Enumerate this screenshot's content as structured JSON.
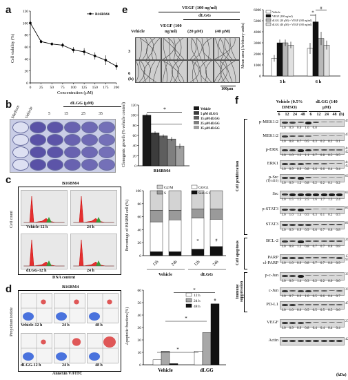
{
  "panels": {
    "a": "a",
    "b": "b",
    "c": "c",
    "d": "d",
    "e": "e",
    "f": "f"
  },
  "panel_a": {
    "legend": "B16BM4",
    "ylabel": "Cell viability (%)",
    "xlabel": "Concentration (μM)",
    "yticks": [
      "0",
      "20",
      "40",
      "60",
      "80",
      "100",
      "120"
    ],
    "xticks": [
      "0",
      "25",
      "50",
      "75",
      "100",
      "125",
      "150",
      "175",
      "200"
    ]
  },
  "panel_b": {
    "drug_header": "dLGG (μM)",
    "col_labels": [
      "Medium",
      "Vehicle",
      "5",
      "15",
      "25",
      "35"
    ],
    "chart_ylabel": "Clonogenic growth (% vehicle control)",
    "chart_xlabel": "B16BM4",
    "legend": [
      "Vehicle",
      "5 μM dLGG",
      "15 μM dLGG",
      "25 μM dLGG",
      "35 μM dLGG"
    ],
    "yticks": [
      "0",
      "20",
      "40",
      "60",
      "80",
      "100",
      "120"
    ],
    "sig": "*"
  },
  "panel_c": {
    "title": "B16BM4",
    "ylabel": "Cell count",
    "xlabel": "DNA content",
    "plot_labels": [
      "Vehicle-12 h",
      "24 h",
      "dLGG-12 h",
      "24 h"
    ],
    "legend": [
      "G2/M",
      "G0/G1",
      "S",
      "Sub-G1"
    ],
    "chart_ylabel": "Percentage of B16BM cell (%)",
    "xticks": [
      "12h",
      "24h",
      "12h",
      "24h"
    ],
    "groups": [
      "Vehicle",
      "dLGG"
    ],
    "yticks": [
      "0",
      "20",
      "40",
      "60",
      "80",
      "100"
    ],
    "sig": [
      "*",
      "#"
    ]
  },
  "panel_d": {
    "title": "B16BM4",
    "ylabel": "Propidium iodide",
    "xlabel": "Annexin V/FITC",
    "plot_labels": [
      "Vehicle-12 h",
      "24 h",
      "48 h",
      "dLGG-12 h",
      "24 h",
      "48 h"
    ],
    "chart_ylabel": "Apoptotic fraction (%)",
    "legend": [
      "12 h",
      "24 h",
      "48 h"
    ],
    "groups": [
      "Vehicle",
      "dLGG"
    ],
    "yticks": [
      "0",
      "10",
      "20",
      "30",
      "40",
      "50",
      "60"
    ],
    "sig": [
      "*",
      "*",
      "*",
      "#"
    ]
  },
  "panel_e": {
    "treat_header": "VEGF (100 ng/ml)",
    "drug_header": "dLGG",
    "col_labels": [
      "Vehicle",
      "VEGF (100 ng/ml)",
      "(20 μM)",
      "(40 μM)"
    ],
    "row_labels": [
      "3",
      "6"
    ],
    "row_unit": "(h)",
    "scale": "100μm",
    "chart_ylabel": "Mean area (Arbitrary units)",
    "legend": [
      "Vehicle",
      "VEGF (100 ng/ml)",
      "dLGG (20 μM) + VEGF (100 ng/ml)",
      "dLGG (40 μM) + VEGF (100 ng/ml)"
    ],
    "yticks": [
      "0",
      "1000",
      "2000",
      "3000",
      "4000",
      "5000",
      "6000"
    ],
    "xticks": [
      "3 h",
      "6 h"
    ],
    "sig": [
      "*",
      "#"
    ]
  },
  "panel_f": {
    "vehicle_header": "Vehicle (0.5% DMSO)",
    "drug_header": "dLGG (140 μM)",
    "times": [
      "6",
      "12",
      "24",
      "48",
      "6",
      "12",
      "24",
      "48"
    ],
    "time_unit": "(h)",
    "kda": "(kDa)",
    "groups": [
      {
        "name": "Cell proliferation"
      },
      {
        "name": "Cell apoptosis"
      },
      {
        "name": "Immune suppression"
      }
    ],
    "rows": [
      {
        "label": "p-MEK1/2",
        "vals": [
          "1.0",
          "0.9",
          "0.6",
          "1.6",
          "0.8",
          "",
          "",
          ""
        ],
        "kda": "45"
      },
      {
        "label": "MEK1/2",
        "vals": [
          "1.0",
          "0.8",
          "0.7",
          "0.5",
          "0.3",
          "0.2",
          "0.2",
          "0.1"
        ],
        "kda": "45"
      },
      {
        "label": "p-ERK",
        "vals": [
          "1.0",
          "1.0",
          "1.2",
          "1.1",
          "0.7",
          "0.8",
          "0.5",
          "0.5"
        ],
        "kda": "44 42"
      },
      {
        "label": "ERK1",
        "vals": [
          "1.0",
          "0.9",
          "0.9",
          "0.8",
          "0.6",
          "0.6",
          "0.4",
          "0.4"
        ],
        "kda": "44 42"
      },
      {
        "label": "p-Src",
        "sub": "(Tyr416)",
        "vals": [
          "1.0",
          "0.9",
          "1.2",
          "0.8",
          "0.2",
          "0.2",
          "0.1",
          "0.2"
        ],
        "kda": "60"
      },
      {
        "label": "Src",
        "vals": [
          "1.0",
          "1.5",
          "1.5",
          "2.5",
          "1.6",
          "1.7",
          "1.3",
          "2.4"
        ],
        "kda": "60"
      },
      {
        "label": "p-STAT3",
        "vals": [
          "1.0",
          "1.0",
          "1.4",
          "0.5",
          "0.3",
          "0.1",
          "0.2",
          "0.5"
        ],
        "kda": "86"
      },
      {
        "label": "STAT3",
        "vals": [
          "1.0",
          "0.9",
          "0.9",
          "0.9",
          "0.6",
          "0.7",
          "0.8",
          "0.8"
        ],
        "kda": "86"
      },
      {
        "label": "BCL-2",
        "vals": [
          "1.0",
          "0.8",
          "1.2",
          "0.8",
          "0.7",
          "0.7",
          "0.8",
          "0.8"
        ],
        "kda": "26"
      },
      {
        "label": "PARP",
        "label2": "cl-PARP",
        "vals": [
          "1.0",
          "1.0",
          "0.9",
          "0.8",
          "0.7",
          "0.7",
          "0.6",
          "0.9"
        ],
        "kda": "130 95"
      },
      {
        "label": "p-c-Jun",
        "vals": [
          "1.0",
          "0.9",
          "1.4",
          "0.3",
          "0.2",
          "0.2",
          "0.0",
          "0.0"
        ],
        "kda": "39"
      },
      {
        "label": "c-Jun",
        "vals": [
          "1.0",
          "0.7",
          "0.9",
          "1.0",
          "0.5",
          "0.6",
          "0.4",
          "0.7"
        ],
        "kda": "39"
      },
      {
        "label": "PD-L1",
        "vals": [
          "1.0",
          "1.0",
          "0.6",
          "0.5",
          "0.5",
          "0.5",
          "0.5",
          "0.6"
        ],
        "kda": "45"
      },
      {
        "label": "VEGF",
        "vals": [
          "1.0",
          "0.9",
          "0.9",
          "0.8",
          "0.4",
          "0.4",
          "0.4",
          "0.4"
        ],
        "kda": "27"
      },
      {
        "label": "Actin",
        "vals": [],
        "kda": "42"
      }
    ]
  },
  "chart_data": [
    {
      "type": "line",
      "name": "a",
      "x": [
        0,
        25,
        50,
        75,
        100,
        125,
        150,
        175,
        200
      ],
      "series": [
        {
          "name": "B16BM4",
          "values": [
            100,
            69,
            65,
            63,
            55,
            52,
            45,
            38,
            28
          ],
          "errors": [
            4,
            3,
            3,
            4,
            5,
            6,
            6,
            8,
            6
          ]
        }
      ],
      "xlabel": "Concentration (μM)",
      "ylabel": "Cell viability (%)",
      "ylim": [
        0,
        120
      ],
      "xlim": [
        0,
        200
      ]
    },
    {
      "type": "bar",
      "name": "b",
      "categories": [
        "Vehicle",
        "5 μM dLGG",
        "15 μM dLGG",
        "25 μM dLGG",
        "35 μM dLGG"
      ],
      "values": [
        100,
        65,
        59,
        53,
        39
      ],
      "errors": [
        3,
        3,
        3,
        4,
        5
      ],
      "colors": [
        "#1a1a1a",
        "#3c3c3c",
        "#5e5e5e",
        "#7f7f7f",
        "#9f9f9f"
      ],
      "xlabel": "B16BM4",
      "ylabel": "Clonogenic growth (% vehicle control)",
      "ylim": [
        0,
        120
      ]
    },
    {
      "type": "bar",
      "name": "c",
      "stacked": true,
      "categories": [
        "12h",
        "24h",
        "12h",
        "24h"
      ],
      "series": [
        {
          "name": "Sub-G1",
          "values": [
            6,
            6,
            10,
            14
          ],
          "color": "#111111"
        },
        {
          "name": "G0/G1",
          "values": [
            46,
            49,
            48,
            42
          ],
          "color": "#ffffff"
        },
        {
          "name": "S",
          "values": [
            18,
            15,
            14,
            16
          ],
          "color": "#9a9a9a"
        },
        {
          "name": "G2/M",
          "values": [
            30,
            30,
            28,
            28
          ],
          "color": "#d3d3d3"
        }
      ],
      "ylabel": "Percentage of B16BM cell (%)",
      "ylim": [
        0,
        100
      ]
    },
    {
      "type": "bar",
      "name": "d",
      "categories": [
        "Vehicle",
        "dLGG"
      ],
      "series": [
        {
          "name": "12 h",
          "values": [
            4,
            11
          ],
          "color": "#ffffff"
        },
        {
          "name": "24 h",
          "values": [
            11,
            26
          ],
          "color": "#a8a8a8"
        },
        {
          "name": "48 h",
          "values": [
            1,
            49
          ],
          "color": "#111111"
        }
      ],
      "ylabel": "Apoptotic fraction (%)",
      "ylim": [
        0,
        60
      ]
    },
    {
      "type": "bar",
      "name": "e",
      "categories": [
        "3 h",
        "6 h"
      ],
      "series": [
        {
          "name": "Vehicle",
          "values": [
            1600,
            2500
          ],
          "errors": [
            300,
            500
          ],
          "color": "#ffffff"
        },
        {
          "name": "VEGF (100 ng/ml)",
          "values": [
            3000,
            4900
          ],
          "errors": [
            300,
            700
          ],
          "color": "#111111"
        },
        {
          "name": "dLGG (20 μM) + VEGF (100 ng/ml)",
          "values": [
            3000,
            3400
          ],
          "errors": [
            300,
            600
          ],
          "color": "#bdbdbd"
        },
        {
          "name": "dLGG (40 μM) + VEGF (100 ng/ml)",
          "values": [
            2800,
            2800
          ],
          "errors": [
            300,
            400
          ],
          "color": "#d8d8d8"
        }
      ],
      "ylabel": "Mean area (Arbitrary units)",
      "ylim": [
        0,
        6000
      ]
    }
  ]
}
